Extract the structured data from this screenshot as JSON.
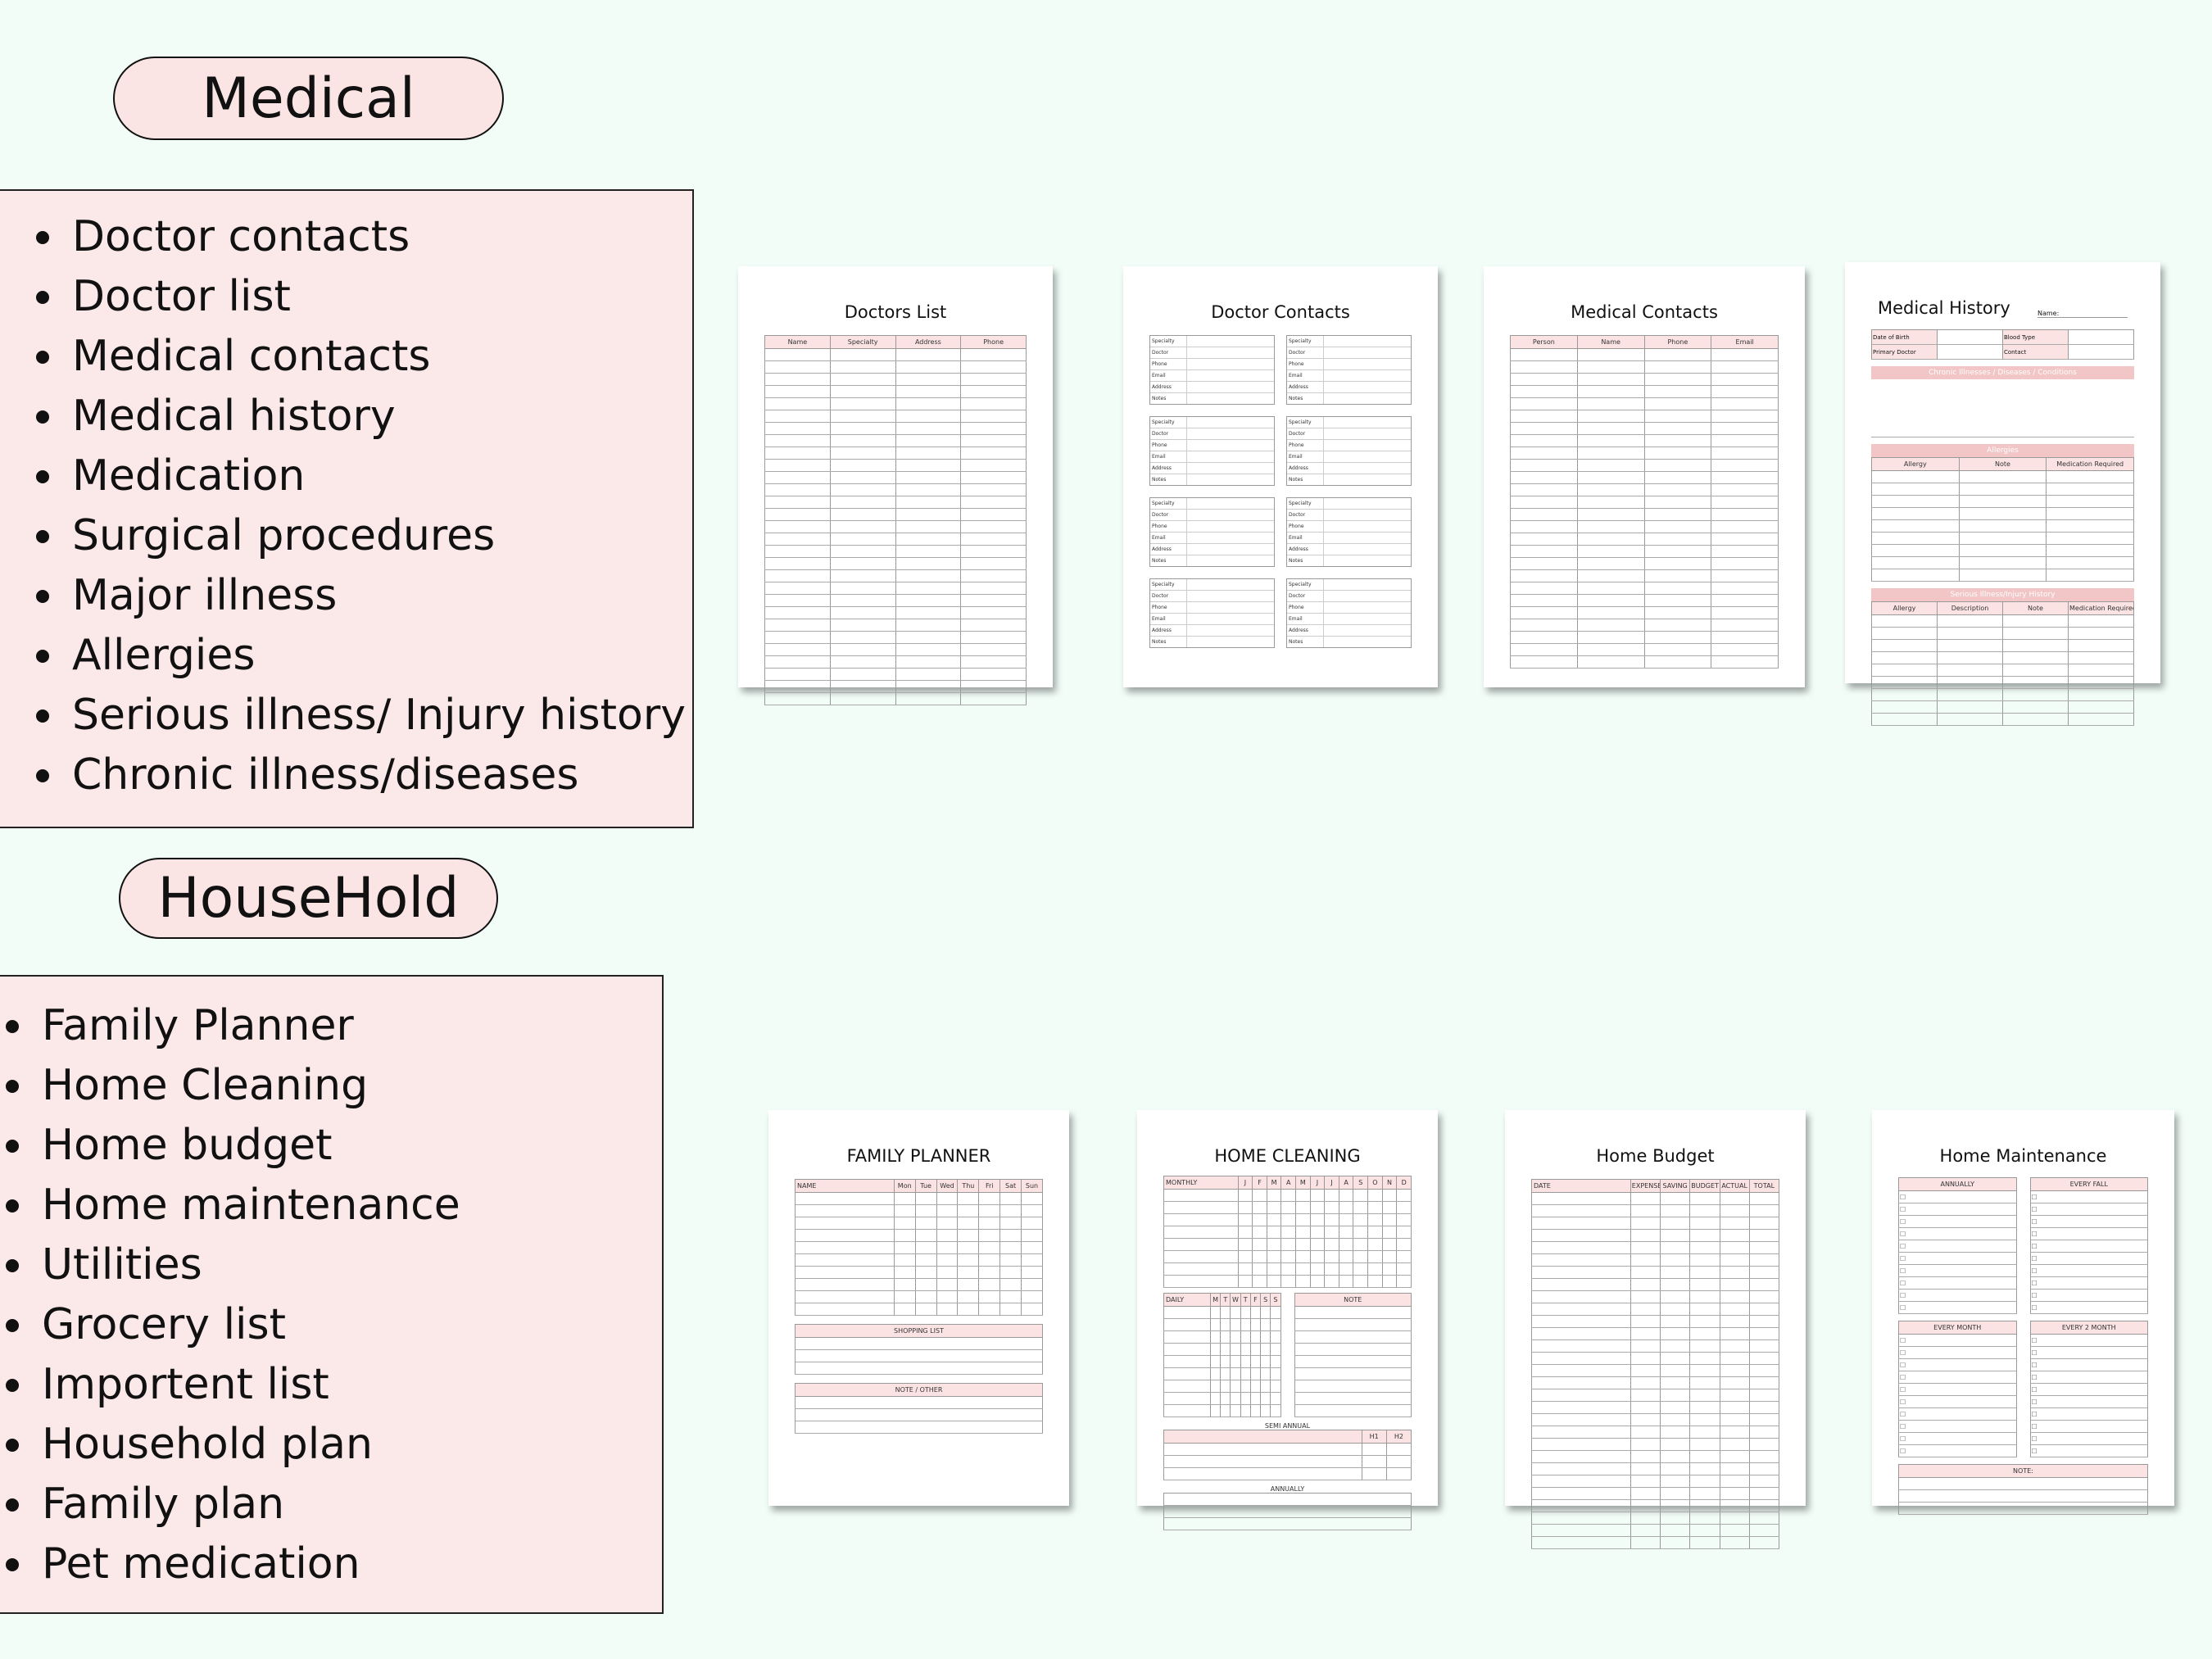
{
  "medical": {
    "heading": "Medical",
    "items": [
      "Doctor contacts",
      "Doctor list",
      "Medical contacts",
      "Medical history",
      "Medication",
      "Surgical procedures",
      "Major illness",
      "Allergies",
      "Serious illness/ Injury history",
      "Chronic illness/diseases"
    ]
  },
  "household": {
    "heading": "HouseHold",
    "items": [
      "Family Planner",
      "Home Cleaning",
      "Home budget",
      "Home maintenance",
      "Utilities",
      "Grocery list",
      "Importent list",
      "Household plan",
      "Family plan",
      "Pet medication"
    ]
  },
  "colors": {
    "background": "#f2fdf8",
    "box_fill": "#fbe8e8",
    "header_pink": "#fbe3e3",
    "banner_pink": "#f2c6c6"
  },
  "sheets": [
    {
      "id": "doctors-list",
      "title": "Doctors List",
      "sections": [
        {
          "cols": [
            "Name",
            "Specialty",
            "Address",
            "Phone"
          ],
          "rows": 29
        }
      ]
    },
    {
      "id": "doctor-contacts",
      "title": "Doctor Contacts",
      "sections": [
        {
          "cards": 8,
          "labels": [
            "Specialty",
            "Doctor",
            "Phone",
            "Email",
            "Address",
            "Notes"
          ]
        }
      ]
    },
    {
      "id": "medical-contacts",
      "title": "Medical Contacts",
      "sections": [
        {
          "cols": [
            "Person",
            "Name",
            "Phone",
            "Email"
          ],
          "rows": 26
        }
      ]
    },
    {
      "id": "medical-history",
      "title": "Medical History",
      "name_label": "Name:",
      "sections": [
        {
          "info": [
            [
              "Date of Birth",
              "",
              "Blood Type",
              ""
            ],
            [
              "Primary Doctor",
              "",
              "Contact",
              ""
            ]
          ]
        },
        {
          "banner": "Chronic Illnesses / Diseases / Conditions",
          "blank": true
        },
        {
          "banner": "Allergies",
          "cols": [
            "Allergy",
            "Note",
            "Medication Required"
          ],
          "rows": 9
        },
        {
          "banner": "Serious Illness/Injury History",
          "cols": [
            "Allergy",
            "Description",
            "Note",
            "Medication Required"
          ],
          "rows": 9
        }
      ]
    },
    {
      "id": "family-planner",
      "title": "FAMILY PLANNER",
      "sections": [
        {
          "cols": [
            "NAME",
            "Mon",
            "Tue",
            "Wed",
            "Thu",
            "Fri",
            "Sat",
            "Sun"
          ],
          "rows": 10
        },
        {
          "cols": [
            "SHOPPING LIST"
          ],
          "rows": 3
        },
        {
          "cols": [
            "NOTE / OTHER"
          ],
          "rows": 3
        }
      ]
    },
    {
      "id": "home-cleaning",
      "title": "HOME CLEANING",
      "sections": [
        {
          "cols": [
            "MONTHLY",
            "J",
            "F",
            "M",
            "A",
            "M",
            "J",
            "J",
            "A",
            "S",
            "O",
            "N",
            "D"
          ],
          "rows": 8
        },
        {
          "group": [
            {
              "cols": [
                "DAILY",
                "M",
                "T",
                "W",
                "T",
                "F",
                "S",
                "S"
              ],
              "rows": 9
            },
            {
              "cols": [
                "NOTE"
              ],
              "rows": 9
            }
          ]
        },
        {
          "title": "SEMI ANNUAL",
          "cols": [
            "",
            "H1",
            "H2"
          ],
          "rows": 3
        },
        {
          "title": "ANNUALLY",
          "rows": 3
        }
      ]
    },
    {
      "id": "home-budget",
      "title": "Home Budget",
      "sections": [
        {
          "cols": [
            "DATE",
            "EXPENSES",
            "SAVING",
            "BUDGET",
            "ACTUAL",
            "TOTAL"
          ],
          "rows": 29
        }
      ]
    },
    {
      "id": "home-maintenance",
      "title": "Home Maintenance",
      "sections": [
        {
          "group": [
            {
              "cols": [
                "ANNUALLY"
              ],
              "rows": 10,
              "check": true
            },
            {
              "cols": [
                "EVERY FALL"
              ],
              "rows": 10,
              "check": true
            }
          ]
        },
        {
          "group": [
            {
              "cols": [
                "EVERY MONTH"
              ],
              "rows": 10,
              "check": true
            },
            {
              "cols": [
                "EVERY 2 MONTH"
              ],
              "rows": 10,
              "check": true
            }
          ]
        },
        {
          "cols": [
            "NOTE:"
          ],
          "rows": 3
        }
      ]
    }
  ]
}
